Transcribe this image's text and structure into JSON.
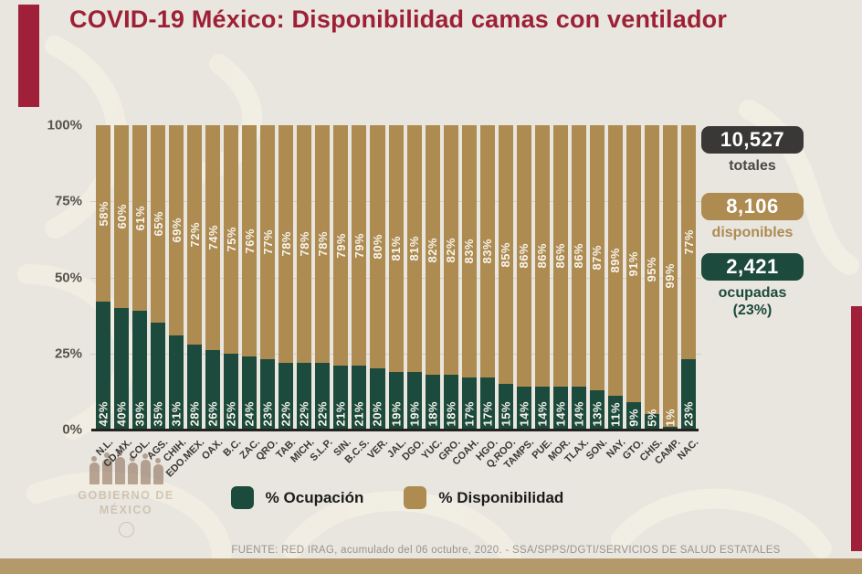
{
  "title": "COVID-19 México: Disponibilidad camas con ventilador",
  "chart_data": {
    "type": "bar",
    "stacked": true,
    "title": "COVID-19 México: Disponibilidad camas con ventilador",
    "categories": [
      "N.L.",
      "CD.MX.",
      "COL.",
      "AGS.",
      "CHIH.",
      "EDO.MEX.",
      "OAX.",
      "B.C.",
      "ZAC.",
      "QRO.",
      "TAB.",
      "MICH.",
      "S.L.P.",
      "SIN.",
      "B.C.S.",
      "VER.",
      "JAL.",
      "DGO.",
      "YUC.",
      "GRO.",
      "COAH.",
      "HGO.",
      "Q.ROO.",
      "TAMPS.",
      "PUE.",
      "MOR.",
      "TLAX.",
      "SON.",
      "NAY.",
      "GTO.",
      "CHIS.",
      "CAMP.",
      "NAC."
    ],
    "series": [
      {
        "name": "% Ocupación",
        "color": "#1c4a3c",
        "values": [
          42,
          40,
          39,
          35,
          31,
          28,
          26,
          25,
          24,
          23,
          22,
          22,
          22,
          21,
          21,
          20,
          19,
          19,
          18,
          18,
          17,
          17,
          15,
          14,
          14,
          14,
          14,
          13,
          11,
          9,
          5,
          1,
          23
        ]
      },
      {
        "name": "% Disponibilidad",
        "color": "#ad8b51",
        "values": [
          58,
          60,
          61,
          65,
          69,
          72,
          74,
          75,
          76,
          77,
          78,
          78,
          78,
          79,
          79,
          80,
          81,
          81,
          82,
          82,
          83,
          83,
          85,
          86,
          86,
          86,
          86,
          87,
          89,
          91,
          95,
          99,
          77
        ]
      }
    ],
    "xlabel": "",
    "ylabel": "",
    "ylim": [
      0,
      100
    ],
    "y_ticks": [
      "100%",
      "75%",
      "50%",
      "25%",
      "0%"
    ],
    "grid": true,
    "legend_position": "bottom",
    "x_label_rotation": 45
  },
  "stats": [
    {
      "value": "10,527",
      "label": "totales",
      "box_color": "#3a3836",
      "label_color": "#4a4742"
    },
    {
      "value": "8,106",
      "label": "disponibles",
      "box_color": "#ad8b51",
      "label_color": "#ad8b51"
    },
    {
      "value": "2,421",
      "label": "ocupadas",
      "sublabel": "(23%)",
      "box_color": "#1c4a3c",
      "label_color": "#1c4a3c"
    }
  ],
  "legend": [
    {
      "label": "% Ocupación",
      "color": "#1c4a3c"
    },
    {
      "label": "% Disponibilidad",
      "color": "#ad8b51"
    }
  ],
  "footer": "FUENTE: RED IRAG, acumulado del 06 octubre, 2020. -  SSA/SPPS/DGTI/SERVICIOS DE SALUD ESTATALES",
  "watermark": {
    "line1": "GOBIERNO DE",
    "line2": "MÉXICO"
  },
  "colors": {
    "accent_red": "#9f2038",
    "title_red": "#9d2035",
    "tan": "#ad8b51",
    "green": "#1c4a3c",
    "dark": "#3a3836",
    "background": "#e9e6e0",
    "bottom_bar": "#b49a6b"
  }
}
